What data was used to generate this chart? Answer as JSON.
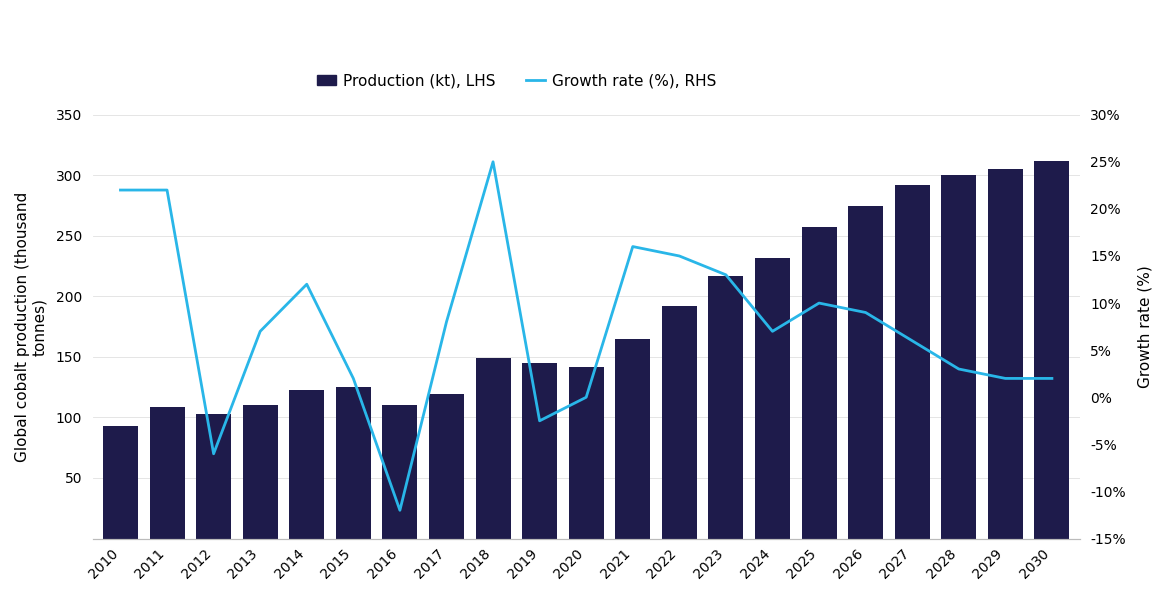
{
  "years": [
    2010,
    2011,
    2012,
    2013,
    2014,
    2015,
    2016,
    2017,
    2018,
    2019,
    2020,
    2021,
    2022,
    2023,
    2024,
    2025,
    2026,
    2027,
    2028,
    2029,
    2030
  ],
  "production": [
    93,
    109,
    103,
    110,
    123,
    125,
    110,
    119,
    149,
    145,
    142,
    165,
    192,
    217,
    232,
    257,
    275,
    292,
    300,
    305,
    312
  ],
  "growth_rate": [
    22,
    22,
    -6,
    7,
    12,
    2,
    -12,
    8,
    25,
    -2.5,
    0,
    16,
    15,
    13,
    7,
    10,
    9,
    6,
    3,
    2,
    2
  ],
  "bar_color": "#1e1b4b",
  "line_color": "#29b6e8",
  "ylabel_left": "Global cobalt production (thousand\ntonnes)",
  "ylabel_right": "Growth rate (%)",
  "legend_bar": "Production (kt), LHS",
  "legend_line": "Growth rate (%), RHS",
  "ylim_left": [
    0,
    350
  ],
  "ylim_right": [
    -15,
    30
  ],
  "yticks_left": [
    50,
    100,
    150,
    200,
    250,
    300,
    350
  ],
  "yticks_right": [
    -15,
    -10,
    -5,
    0,
    5,
    10,
    15,
    20,
    25,
    30
  ],
  "background_color": "#ffffff",
  "grid_color": "#e0e0e0",
  "figsize": [
    11.67,
    5.96
  ],
  "dpi": 100
}
